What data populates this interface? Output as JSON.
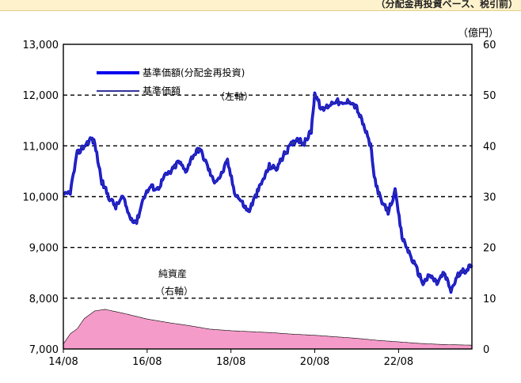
{
  "header_strip_text": "（分配金再投資ベース、税引前）",
  "chart_data": {
    "type": "line+area",
    "title": "",
    "left_axis": {
      "ylim": [
        7000,
        13000
      ],
      "ticks": [
        "7,000",
        "8,000",
        "9,000",
        "10,000",
        "11,000",
        "12,000",
        "13,000"
      ],
      "label": ""
    },
    "right_axis": {
      "ylim": [
        0,
        60
      ],
      "ticks": [
        "0",
        "10",
        "20",
        "30",
        "40",
        "50",
        "60"
      ],
      "unit_label": "（億円）"
    },
    "x_axis": {
      "range": [
        "2014-08",
        "2024-05"
      ],
      "ticks": [
        "14/08",
        "16/08",
        "18/08",
        "20/08",
        "22/08"
      ]
    },
    "grid": "horizontal dashed",
    "legend": {
      "position": "top-left",
      "entries": [
        "基準価額(分配金再投資)",
        "基準価額"
      ]
    },
    "annotations": [
      "（左軸）",
      "純資産",
      "（右軸）"
    ],
    "series": [
      {
        "name": "基準価額(分配金再投資)",
        "axis": "left",
        "color": "#0000ee",
        "points": [
          [
            "2014-08",
            10000
          ],
          [
            "2014-10",
            10100
          ],
          [
            "2014-12",
            10850
          ],
          [
            "2015-02",
            11000
          ],
          [
            "2015-04",
            11150
          ],
          [
            "2015-05",
            11050
          ],
          [
            "2015-07",
            10300
          ],
          [
            "2015-09",
            10000
          ],
          [
            "2015-11",
            9800
          ],
          [
            "2016-01",
            10000
          ],
          [
            "2016-03",
            9600
          ],
          [
            "2016-05",
            9500
          ],
          [
            "2016-07",
            10000
          ],
          [
            "2016-09",
            10200
          ],
          [
            "2016-11",
            10150
          ],
          [
            "2017-01",
            10400
          ],
          [
            "2017-03",
            10500
          ],
          [
            "2017-05",
            10700
          ],
          [
            "2017-07",
            10500
          ],
          [
            "2017-09",
            10800
          ],
          [
            "2017-11",
            10950
          ],
          [
            "2018-01",
            10650
          ],
          [
            "2018-03",
            10300
          ],
          [
            "2018-05",
            10400
          ],
          [
            "2018-07",
            10700
          ],
          [
            "2018-09",
            10100
          ],
          [
            "2018-11",
            9900
          ],
          [
            "2019-01",
            9700
          ],
          [
            "2019-03",
            10000
          ],
          [
            "2019-05",
            10300
          ],
          [
            "2019-07",
            10600
          ],
          [
            "2019-09",
            10550
          ],
          [
            "2019-11",
            10800
          ],
          [
            "2020-01",
            11000
          ],
          [
            "2020-03",
            11150
          ],
          [
            "2020-05",
            11050
          ],
          [
            "2020-07",
            11300
          ],
          [
            "2020-08",
            12050
          ],
          [
            "2020-10",
            11700
          ],
          [
            "2020-12",
            11800
          ],
          [
            "2021-02",
            11900
          ],
          [
            "2021-04",
            11800
          ],
          [
            "2021-06",
            11900
          ],
          [
            "2021-08",
            11750
          ],
          [
            "2021-10",
            11400
          ],
          [
            "2021-12",
            11000
          ],
          [
            "2022-01",
            10400
          ],
          [
            "2022-03",
            9900
          ],
          [
            "2022-05",
            9700
          ],
          [
            "2022-07",
            10100
          ],
          [
            "2022-09",
            9200
          ],
          [
            "2022-11",
            8900
          ],
          [
            "2023-01",
            8600
          ],
          [
            "2023-03",
            8300
          ],
          [
            "2023-05",
            8450
          ],
          [
            "2023-07",
            8300
          ],
          [
            "2023-09",
            8500
          ],
          [
            "2023-11",
            8150
          ],
          [
            "2024-01",
            8450
          ],
          [
            "2024-03",
            8550
          ],
          [
            "2024-05",
            8650
          ]
        ]
      },
      {
        "name": "基準価額",
        "axis": "left",
        "color": "#33339a",
        "same_as_reinvested": true
      },
      {
        "name": "純資産",
        "axis": "right",
        "type": "area",
        "color": "#f49bc9",
        "points": [
          [
            "2014-08",
            1
          ],
          [
            "2014-10",
            3
          ],
          [
            "2014-12",
            4
          ],
          [
            "2015-02",
            6
          ],
          [
            "2015-05",
            7.5
          ],
          [
            "2015-08",
            7.8
          ],
          [
            "2016-02",
            6.9
          ],
          [
            "2016-08",
            5.9
          ],
          [
            "2017-02",
            5.2
          ],
          [
            "2017-08",
            4.6
          ],
          [
            "2018-02",
            3.9
          ],
          [
            "2018-08",
            3.6
          ],
          [
            "2019-02",
            3.4
          ],
          [
            "2019-08",
            3.2
          ],
          [
            "2020-02",
            2.9
          ],
          [
            "2020-08",
            2.7
          ],
          [
            "2021-02",
            2.4
          ],
          [
            "2021-08",
            2.1
          ],
          [
            "2022-02",
            1.7
          ],
          [
            "2022-08",
            1.4
          ],
          [
            "2023-02",
            1.1
          ],
          [
            "2023-08",
            0.9
          ],
          [
            "2024-02",
            0.8
          ],
          [
            "2024-05",
            0.75
          ]
        ]
      }
    ]
  }
}
